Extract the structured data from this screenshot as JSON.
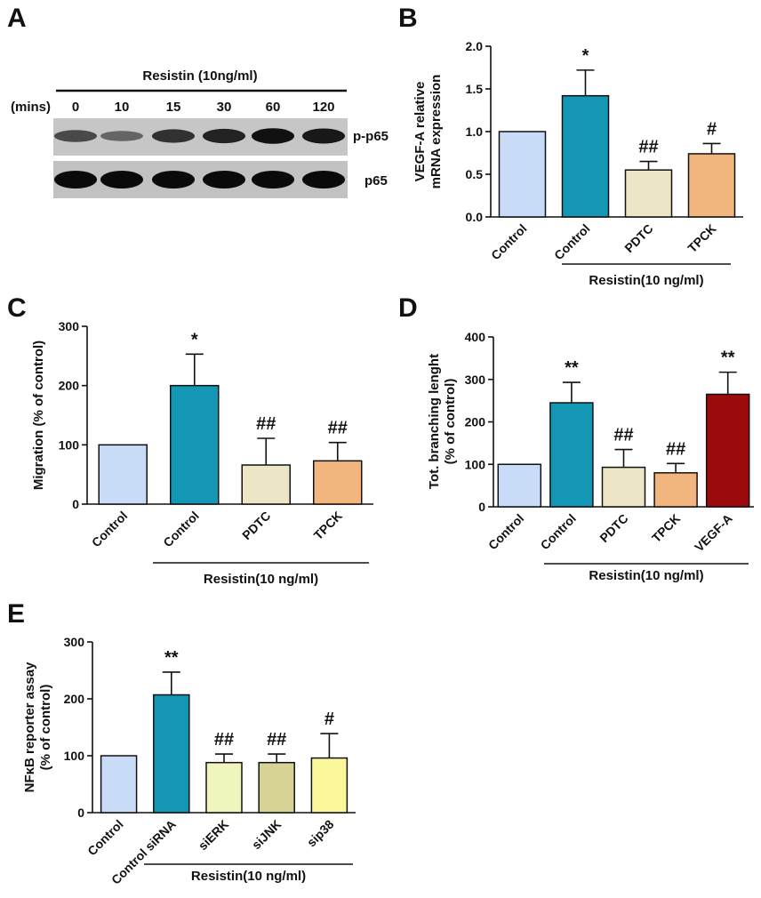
{
  "panels": {
    "A": {
      "letter": "A",
      "treatment": "Resistin (10ng/ml)",
      "time_unit": "(mins)",
      "times": [
        "0",
        "10",
        "15",
        "30",
        "60",
        "120"
      ],
      "rows": [
        "p-p65",
        "p65"
      ],
      "band_intensity": {
        "p-p65": [
          0.55,
          0.35,
          0.72,
          0.82,
          0.95,
          0.9
        ],
        "p65": [
          1.0,
          1.0,
          1.0,
          1.0,
          1.0,
          1.0
        ]
      }
    }
  },
  "colors": {
    "control": "#c9dcf7",
    "resistin": "#1497b5",
    "pdtc": "#ece6c6",
    "tpck": "#f2b57e",
    "vegfa": "#9b0b0b",
    "sierk": "#f0f4bd",
    "sijnk": "#d6d395",
    "sip38": "#fbf89c"
  },
  "chart_data": [
    {
      "panel": "B",
      "type": "bar",
      "ylabel": [
        "VEGF-A relative",
        "mRNA expression"
      ],
      "ylim": [
        0,
        2.0
      ],
      "yticks": [
        "0.0",
        "0.5",
        "1.0",
        "1.5",
        "2.0"
      ],
      "categories": [
        "Control",
        "Control",
        "PDTC",
        "TPCK"
      ],
      "values": [
        1.0,
        1.42,
        0.55,
        0.74
      ],
      "errors": [
        0,
        0.3,
        0.1,
        0.12
      ],
      "marks": [
        "",
        "*",
        "##",
        "#"
      ],
      "bar_colors": [
        "control",
        "resistin",
        "pdtc",
        "tpck"
      ],
      "group_label": "Resistin(10 ng/ml)"
    },
    {
      "panel": "C",
      "type": "bar",
      "ylabel": [
        "Migration (% of control)"
      ],
      "ylim": [
        0,
        300
      ],
      "yticks": [
        "0",
        "100",
        "200",
        "300"
      ],
      "categories": [
        "Control",
        "Control",
        "PDTC",
        "TPCK"
      ],
      "values": [
        100,
        200,
        66,
        73
      ],
      "errors": [
        0,
        53,
        45,
        31
      ],
      "marks": [
        "",
        "*",
        "##",
        "##"
      ],
      "bar_colors": [
        "control",
        "resistin",
        "pdtc",
        "tpck"
      ],
      "group_label": "Resistin(10 ng/ml)"
    },
    {
      "panel": "D",
      "type": "bar",
      "ylabel": [
        "Tot. branching lenght",
        "(% of control)"
      ],
      "ylim": [
        0,
        400
      ],
      "yticks": [
        "0",
        "100",
        "200",
        "300",
        "400"
      ],
      "categories": [
        "Control",
        "Control",
        "PDTC",
        "TPCK",
        "VEGF-A"
      ],
      "values": [
        100,
        245,
        93,
        80,
        265
      ],
      "errors": [
        0,
        48,
        42,
        22,
        52
      ],
      "marks": [
        "",
        "**",
        "##",
        "##",
        "**"
      ],
      "bar_colors": [
        "control",
        "resistin",
        "pdtc",
        "tpck",
        "vegfa"
      ],
      "group_label": "Resistin(10 ng/ml)"
    },
    {
      "panel": "E",
      "type": "bar",
      "ylabel": [
        "NFκB reporter assay",
        "(% of control)"
      ],
      "ylim": [
        0,
        300
      ],
      "yticks": [
        "0",
        "100",
        "200",
        "300"
      ],
      "categories": [
        "Control",
        "Control siRNA",
        "siERK",
        "siJNK",
        "sip38"
      ],
      "values": [
        100,
        207,
        88,
        88,
        96
      ],
      "errors": [
        0,
        40,
        15,
        15,
        43
      ],
      "marks": [
        "",
        "**",
        "##",
        "##",
        "#"
      ],
      "bar_colors": [
        "control",
        "resistin",
        "sierk",
        "sijnk",
        "sip38"
      ],
      "group_label": "Resistin(10 ng/ml)"
    }
  ]
}
